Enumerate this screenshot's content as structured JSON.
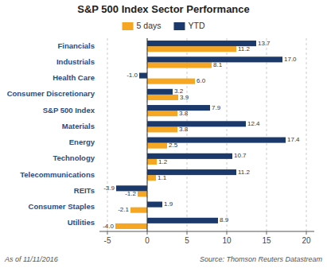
{
  "chart_data": {
    "type": "bar",
    "orientation": "horizontal",
    "title": "S&P 500 Index Sector Performance",
    "categories": [
      "Financials",
      "Industrials",
      "Health Care",
      "Consumer Discretionary",
      "S&P 500 Index",
      "Materials",
      "Energy",
      "Technology",
      "Telecommunications",
      "REITs",
      "Consumer Staples",
      "Utilities"
    ],
    "series": [
      {
        "name": "5 days",
        "color": "#F5A623",
        "values": [
          11.2,
          8.1,
          6.0,
          3.9,
          3.8,
          3.8,
          2.5,
          1.2,
          1.1,
          -1.2,
          -2.1,
          -4.0
        ],
        "value_labels": [
          "11.2",
          "8.1",
          "6.0",
          "3.9",
          "3.8",
          "3.8",
          "2.5",
          "1.2",
          "1.1",
          "-1.2",
          "-2.1",
          "-4.0"
        ]
      },
      {
        "name": "YTD",
        "color": "#1B3A6B",
        "values": [
          13.7,
          17.0,
          -1.0,
          3.2,
          7.9,
          12.4,
          17.4,
          10.7,
          11.2,
          -3.9,
          1.9,
          8.9
        ],
        "value_labels": [
          "13.7",
          "17.0",
          "-1.0",
          "3.2",
          "7.9",
          "12.4",
          "17.4",
          "10.7",
          "11.2",
          "-3.9",
          "1.9",
          "8.9"
        ]
      }
    ],
    "xlim": [
      -6,
      21
    ],
    "xticks": [
      -5,
      0,
      5,
      10,
      15,
      20
    ],
    "grid": true,
    "legend": "top",
    "data_labels": true,
    "annotations": [
      "As of 11/11/2016",
      "Source: Thomson Reuters Datastream"
    ]
  }
}
